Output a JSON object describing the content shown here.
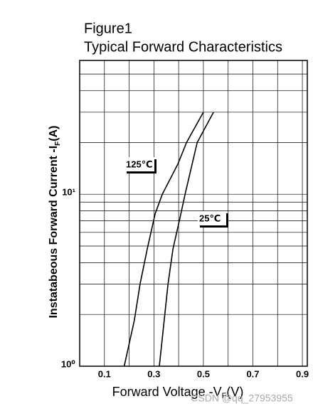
{
  "chart_data": {
    "type": "line",
    "title": "Figure1",
    "subtitle": "Typical Forward Characteristics",
    "y_label": "Instatabeous Forward Current -I",
    "y_label_sub": "F",
    "y_label_end": "(A)",
    "x_label": "Forward Voltage -V",
    "x_label_sub": "F",
    "x_label_end": "(V)",
    "watermark": "CSDN @qq_27953955",
    "log_y": true,
    "grid": true,
    "xlim": [
      0,
      0.92
    ],
    "ylim": [
      1,
      60
    ],
    "xticks": [
      0.1,
      0.3,
      0.5,
      0.7,
      0.9
    ],
    "xminor": [
      0,
      0.2,
      0.4,
      0.6,
      0.8
    ],
    "yticks": [
      {
        "value": 1,
        "label": "10⁰"
      },
      {
        "value": 10,
        "label": "10¹"
      }
    ],
    "yminor": [
      2,
      3,
      4,
      5,
      6,
      7,
      8,
      9,
      20,
      30,
      40,
      50,
      60
    ],
    "series": [
      {
        "name": "125℃",
        "color": "#000000",
        "x": [
          0.18,
          0.221,
          0.244,
          0.273,
          0.305,
          0.334,
          0.397,
          0.432,
          0.5
        ],
        "values": [
          1,
          1.85,
          3,
          4.8,
          7.7,
          10,
          15,
          20,
          30
        ]
      },
      {
        "name": "25℃",
        "color": "#000000",
        "x": [
          0.322,
          0.357,
          0.377,
          0.409,
          0.426,
          0.475,
          0.541
        ],
        "values": [
          1,
          3,
          4.8,
          7.7,
          10,
          20,
          30
        ]
      }
    ]
  }
}
